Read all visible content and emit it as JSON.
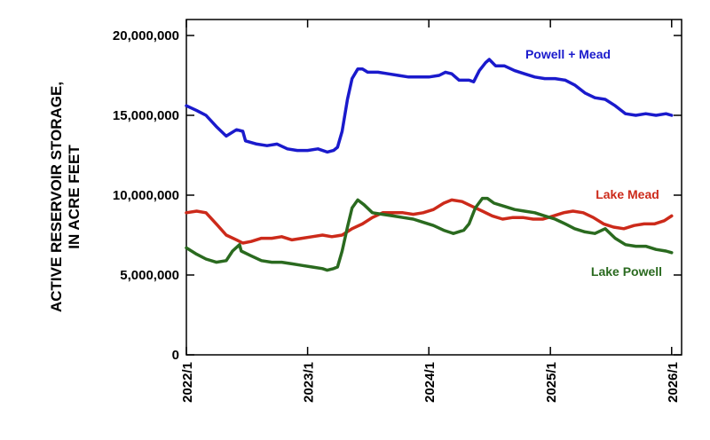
{
  "chart_data": {
    "type": "line",
    "ylabel_lines": [
      "ACTIVE RESERVOIR STORAGE,",
      "IN ACRE FEET"
    ],
    "ylim": [
      0,
      21000000
    ],
    "yticks": [
      {
        "value": 0,
        "label": "0"
      },
      {
        "value": 5000000,
        "label": "5,000,000"
      },
      {
        "value": 10000000,
        "label": "10,000,000"
      },
      {
        "value": 15000000,
        "label": "15,000,000"
      },
      {
        "value": 20000000,
        "label": "20,000,000"
      }
    ],
    "xlim": [
      "2022-01-01",
      "2026-01-31"
    ],
    "xticks": [
      {
        "value": "2022-01-01",
        "label": "2022/1"
      },
      {
        "value": "2023-01-01",
        "label": "2023/1"
      },
      {
        "value": "2024-01-01",
        "label": "2024/1"
      },
      {
        "value": "2025-01-01",
        "label": "2025/1"
      },
      {
        "value": "2026-01-01",
        "label": "2026/1"
      }
    ],
    "grid": false,
    "series": [
      {
        "name": "Powell + Mead",
        "color": "#1a1acc",
        "points": [
          [
            "2022-01-01",
            15600000
          ],
          [
            "2022-02-01",
            15300000
          ],
          [
            "2022-03-01",
            15000000
          ],
          [
            "2022-04-01",
            14300000
          ],
          [
            "2022-05-01",
            13700000
          ],
          [
            "2022-06-01",
            14100000
          ],
          [
            "2022-06-20",
            14000000
          ],
          [
            "2022-06-28",
            13400000
          ],
          [
            "2022-08-01",
            13200000
          ],
          [
            "2022-09-01",
            13100000
          ],
          [
            "2022-10-01",
            13200000
          ],
          [
            "2022-11-01",
            12900000
          ],
          [
            "2022-12-01",
            12800000
          ],
          [
            "2023-01-01",
            12800000
          ],
          [
            "2023-02-01",
            12900000
          ],
          [
            "2023-03-01",
            12700000
          ],
          [
            "2023-03-20",
            12800000
          ],
          [
            "2023-04-01",
            13000000
          ],
          [
            "2023-04-15",
            14000000
          ],
          [
            "2023-05-01",
            16000000
          ],
          [
            "2023-05-15",
            17300000
          ],
          [
            "2023-06-01",
            17900000
          ],
          [
            "2023-06-15",
            17900000
          ],
          [
            "2023-07-01",
            17700000
          ],
          [
            "2023-08-01",
            17700000
          ],
          [
            "2023-09-01",
            17600000
          ],
          [
            "2023-10-01",
            17500000
          ],
          [
            "2023-11-01",
            17400000
          ],
          [
            "2023-12-01",
            17400000
          ],
          [
            "2024-01-01",
            17400000
          ],
          [
            "2024-02-01",
            17500000
          ],
          [
            "2024-02-20",
            17700000
          ],
          [
            "2024-03-10",
            17600000
          ],
          [
            "2024-04-01",
            17200000
          ],
          [
            "2024-05-01",
            17200000
          ],
          [
            "2024-05-15",
            17100000
          ],
          [
            "2024-06-01",
            17800000
          ],
          [
            "2024-06-20",
            18300000
          ],
          [
            "2024-07-01",
            18500000
          ],
          [
            "2024-07-20",
            18100000
          ],
          [
            "2024-08-15",
            18100000
          ],
          [
            "2024-09-15",
            17800000
          ],
          [
            "2024-10-15",
            17600000
          ],
          [
            "2024-11-15",
            17400000
          ],
          [
            "2024-12-15",
            17300000
          ],
          [
            "2025-01-15",
            17300000
          ],
          [
            "2025-02-15",
            17200000
          ],
          [
            "2025-03-15",
            16900000
          ],
          [
            "2025-04-15",
            16400000
          ],
          [
            "2025-05-15",
            16100000
          ],
          [
            "2025-06-15",
            16000000
          ],
          [
            "2025-07-15",
            15600000
          ],
          [
            "2025-08-15",
            15100000
          ],
          [
            "2025-09-15",
            15000000
          ],
          [
            "2025-10-15",
            15100000
          ],
          [
            "2025-11-15",
            15000000
          ],
          [
            "2025-12-15",
            15100000
          ],
          [
            "2026-01-01",
            15000000
          ]
        ]
      },
      {
        "name": "Lake Mead",
        "color": "#cc2a1a",
        "points": [
          [
            "2022-01-01",
            8900000
          ],
          [
            "2022-02-01",
            9000000
          ],
          [
            "2022-03-01",
            8900000
          ],
          [
            "2022-04-01",
            8200000
          ],
          [
            "2022-05-01",
            7500000
          ],
          [
            "2022-06-01",
            7200000
          ],
          [
            "2022-06-20",
            7000000
          ],
          [
            "2022-07-15",
            7100000
          ],
          [
            "2022-08-15",
            7300000
          ],
          [
            "2022-09-15",
            7300000
          ],
          [
            "2022-10-15",
            7400000
          ],
          [
            "2022-11-15",
            7200000
          ],
          [
            "2022-12-15",
            7300000
          ],
          [
            "2023-01-15",
            7400000
          ],
          [
            "2023-02-15",
            7500000
          ],
          [
            "2023-03-15",
            7400000
          ],
          [
            "2023-04-15",
            7500000
          ],
          [
            "2023-05-15",
            7900000
          ],
          [
            "2023-06-15",
            8200000
          ],
          [
            "2023-07-15",
            8600000
          ],
          [
            "2023-08-15",
            8900000
          ],
          [
            "2023-09-15",
            8900000
          ],
          [
            "2023-10-15",
            8900000
          ],
          [
            "2023-11-15",
            8800000
          ],
          [
            "2023-12-15",
            8900000
          ],
          [
            "2024-01-15",
            9100000
          ],
          [
            "2024-02-15",
            9500000
          ],
          [
            "2024-03-10",
            9700000
          ],
          [
            "2024-04-10",
            9600000
          ],
          [
            "2024-05-10",
            9300000
          ],
          [
            "2024-06-10",
            9000000
          ],
          [
            "2024-07-10",
            8700000
          ],
          [
            "2024-08-10",
            8500000
          ],
          [
            "2024-09-10",
            8600000
          ],
          [
            "2024-10-10",
            8600000
          ],
          [
            "2024-11-10",
            8500000
          ],
          [
            "2024-12-10",
            8500000
          ],
          [
            "2025-01-10",
            8700000
          ],
          [
            "2025-02-10",
            8900000
          ],
          [
            "2025-03-10",
            9000000
          ],
          [
            "2025-04-10",
            8900000
          ],
          [
            "2025-05-10",
            8600000
          ],
          [
            "2025-06-10",
            8200000
          ],
          [
            "2025-07-10",
            8000000
          ],
          [
            "2025-08-10",
            7900000
          ],
          [
            "2025-09-10",
            8100000
          ],
          [
            "2025-10-10",
            8200000
          ],
          [
            "2025-11-10",
            8200000
          ],
          [
            "2025-12-10",
            8400000
          ],
          [
            "2026-01-01",
            8700000
          ]
        ]
      },
      {
        "name": "Lake Powell",
        "color": "#2a6a1f",
        "points": [
          [
            "2022-01-01",
            6700000
          ],
          [
            "2022-02-01",
            6300000
          ],
          [
            "2022-03-01",
            6000000
          ],
          [
            "2022-04-01",
            5800000
          ],
          [
            "2022-05-01",
            5900000
          ],
          [
            "2022-05-20",
            6500000
          ],
          [
            "2022-06-10",
            6900000
          ],
          [
            "2022-06-15",
            6500000
          ],
          [
            "2022-07-15",
            6200000
          ],
          [
            "2022-08-15",
            5900000
          ],
          [
            "2022-09-15",
            5800000
          ],
          [
            "2022-10-15",
            5800000
          ],
          [
            "2022-11-15",
            5700000
          ],
          [
            "2022-12-15",
            5600000
          ],
          [
            "2023-01-15",
            5500000
          ],
          [
            "2023-02-15",
            5400000
          ],
          [
            "2023-03-01",
            5300000
          ],
          [
            "2023-03-20",
            5400000
          ],
          [
            "2023-04-01",
            5500000
          ],
          [
            "2023-04-15",
            6500000
          ],
          [
            "2023-05-01",
            8000000
          ],
          [
            "2023-05-15",
            9200000
          ],
          [
            "2023-06-01",
            9700000
          ],
          [
            "2023-06-20",
            9400000
          ],
          [
            "2023-07-15",
            8900000
          ],
          [
            "2023-08-15",
            8800000
          ],
          [
            "2023-09-15",
            8700000
          ],
          [
            "2023-10-15",
            8600000
          ],
          [
            "2023-11-15",
            8500000
          ],
          [
            "2023-12-15",
            8300000
          ],
          [
            "2024-01-15",
            8100000
          ],
          [
            "2024-02-15",
            7800000
          ],
          [
            "2024-03-15",
            7600000
          ],
          [
            "2024-04-15",
            7800000
          ],
          [
            "2024-05-01",
            8200000
          ],
          [
            "2024-05-20",
            9200000
          ],
          [
            "2024-06-10",
            9800000
          ],
          [
            "2024-06-25",
            9800000
          ],
          [
            "2024-07-15",
            9500000
          ],
          [
            "2024-08-15",
            9300000
          ],
          [
            "2024-09-15",
            9100000
          ],
          [
            "2024-10-15",
            9000000
          ],
          [
            "2024-11-15",
            8900000
          ],
          [
            "2024-12-15",
            8700000
          ],
          [
            "2025-01-15",
            8500000
          ],
          [
            "2025-02-15",
            8200000
          ],
          [
            "2025-03-15",
            7900000
          ],
          [
            "2025-04-15",
            7700000
          ],
          [
            "2025-05-15",
            7600000
          ],
          [
            "2025-06-15",
            7900000
          ],
          [
            "2025-07-15",
            7300000
          ],
          [
            "2025-08-15",
            6900000
          ],
          [
            "2025-09-15",
            6800000
          ],
          [
            "2025-10-15",
            6800000
          ],
          [
            "2025-11-15",
            6600000
          ],
          [
            "2025-12-15",
            6500000
          ],
          [
            "2026-01-01",
            6400000
          ]
        ]
      }
    ]
  }
}
